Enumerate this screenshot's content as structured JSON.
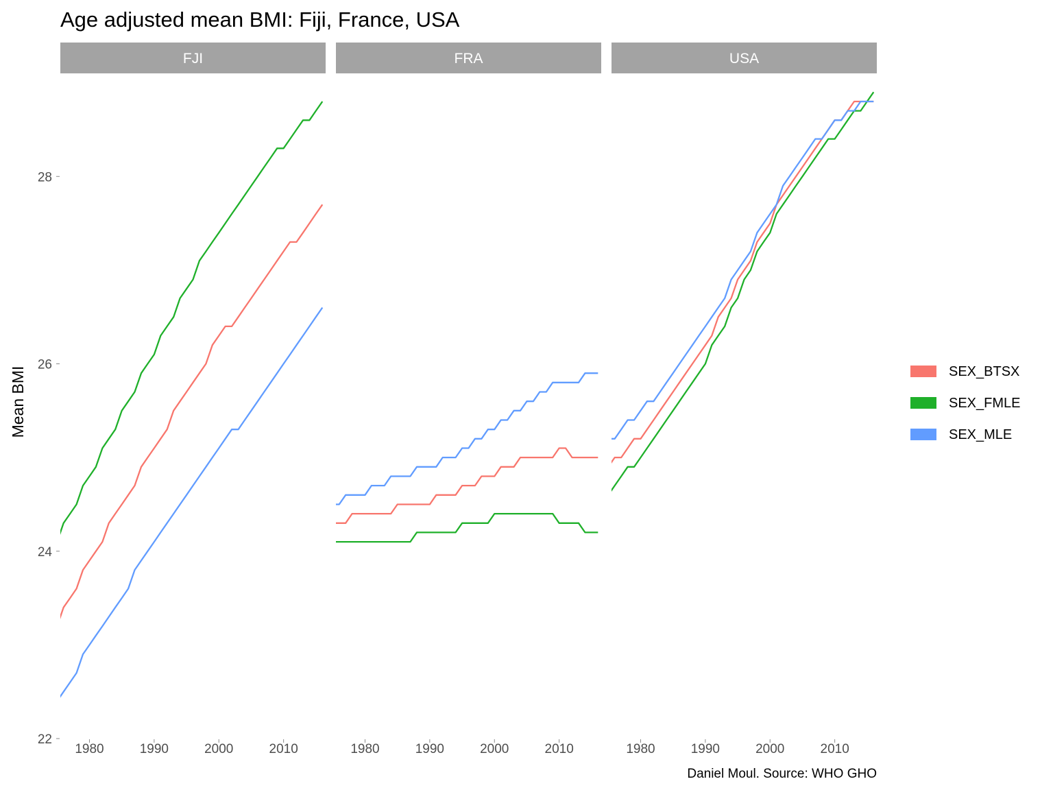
{
  "chart_data": {
    "type": "line",
    "title": "Age adjusted mean BMI: Fiji, France, USA",
    "ylabel": "Mean BMI",
    "xlabel": "",
    "caption": "Daniel Moul. Source: WHO GHO",
    "xlim": [
      1975.5,
      2016.5
    ],
    "ylim": [
      22,
      29.1
    ],
    "x_ticks": [
      1980,
      1990,
      2000,
      2010
    ],
    "y_ticks": [
      22,
      24,
      26,
      28
    ],
    "grid": false,
    "legend": {
      "position": "right",
      "entries": [
        {
          "name": "SEX_BTSX",
          "color": "#f8766d"
        },
        {
          "name": "SEX_FMLE",
          "color": "#1fb02a"
        },
        {
          "name": "SEX_MLE",
          "color": "#619cff"
        }
      ]
    },
    "x": [
      1975,
      1976,
      1977,
      1978,
      1979,
      1980,
      1981,
      1982,
      1983,
      1984,
      1985,
      1986,
      1987,
      1988,
      1989,
      1990,
      1991,
      1992,
      1993,
      1994,
      1995,
      1996,
      1997,
      1998,
      1999,
      2000,
      2001,
      2002,
      2003,
      2004,
      2005,
      2006,
      2007,
      2008,
      2009,
      2010,
      2011,
      2012,
      2013,
      2014,
      2015,
      2016
    ],
    "panels": [
      {
        "name": "FJI",
        "series": [
          {
            "name": "SEX_BTSX",
            "values": [
              23.2,
              23.4,
              23.5,
              23.6,
              23.8,
              23.9,
              24.0,
              24.1,
              24.3,
              24.4,
              24.5,
              24.6,
              24.7,
              24.9,
              25.0,
              25.1,
              25.2,
              25.3,
              25.5,
              25.6,
              25.7,
              25.8,
              25.9,
              26.0,
              26.2,
              26.3,
              26.4,
              26.4,
              26.5,
              26.6,
              26.7,
              26.8,
              26.9,
              27.0,
              27.1,
              27.2,
              27.3,
              27.3,
              27.4,
              27.5,
              27.6,
              27.7
            ]
          },
          {
            "name": "SEX_FMLE",
            "values": [
              24.1,
              24.3,
              24.4,
              24.5,
              24.7,
              24.8,
              24.9,
              25.1,
              25.2,
              25.3,
              25.5,
              25.6,
              25.7,
              25.9,
              26.0,
              26.1,
              26.3,
              26.4,
              26.5,
              26.7,
              26.8,
              26.9,
              27.1,
              27.2,
              27.3,
              27.4,
              27.5,
              27.6,
              27.7,
              27.8,
              27.9,
              28.0,
              28.1,
              28.2,
              28.3,
              28.3,
              28.4,
              28.5,
              28.6,
              28.6,
              28.7,
              28.8
            ]
          },
          {
            "name": "SEX_MLE",
            "values": [
              22.4,
              22.5,
              22.6,
              22.7,
              22.9,
              23.0,
              23.1,
              23.2,
              23.3,
              23.4,
              23.5,
              23.6,
              23.8,
              23.9,
              24.0,
              24.1,
              24.2,
              24.3,
              24.4,
              24.5,
              24.6,
              24.7,
              24.8,
              24.9,
              25.0,
              25.1,
              25.2,
              25.3,
              25.3,
              25.4,
              25.5,
              25.6,
              25.7,
              25.8,
              25.9,
              26.0,
              26.1,
              26.2,
              26.3,
              26.4,
              26.5,
              26.6
            ]
          }
        ]
      },
      {
        "name": "FRA",
        "series": [
          {
            "name": "SEX_BTSX",
            "values": [
              24.3,
              24.3,
              24.3,
              24.4,
              24.4,
              24.4,
              24.4,
              24.4,
              24.4,
              24.4,
              24.5,
              24.5,
              24.5,
              24.5,
              24.5,
              24.5,
              24.6,
              24.6,
              24.6,
              24.6,
              24.7,
              24.7,
              24.7,
              24.8,
              24.8,
              24.8,
              24.9,
              24.9,
              24.9,
              25.0,
              25.0,
              25.0,
              25.0,
              25.0,
              25.0,
              25.1,
              25.1,
              25.0,
              25.0,
              25.0,
              25.0,
              25.0
            ]
          },
          {
            "name": "SEX_FMLE",
            "values": [
              24.1,
              24.1,
              24.1,
              24.1,
              24.1,
              24.1,
              24.1,
              24.1,
              24.1,
              24.1,
              24.1,
              24.1,
              24.1,
              24.2,
              24.2,
              24.2,
              24.2,
              24.2,
              24.2,
              24.2,
              24.3,
              24.3,
              24.3,
              24.3,
              24.3,
              24.4,
              24.4,
              24.4,
              24.4,
              24.4,
              24.4,
              24.4,
              24.4,
              24.4,
              24.4,
              24.3,
              24.3,
              24.3,
              24.3,
              24.2,
              24.2,
              24.2
            ]
          },
          {
            "name": "SEX_MLE",
            "values": [
              24.5,
              24.5,
              24.6,
              24.6,
              24.6,
              24.6,
              24.7,
              24.7,
              24.7,
              24.8,
              24.8,
              24.8,
              24.8,
              24.9,
              24.9,
              24.9,
              24.9,
              25.0,
              25.0,
              25.0,
              25.1,
              25.1,
              25.2,
              25.2,
              25.3,
              25.3,
              25.4,
              25.4,
              25.5,
              25.5,
              25.6,
              25.6,
              25.7,
              25.7,
              25.8,
              25.8,
              25.8,
              25.8,
              25.8,
              25.9,
              25.9,
              25.9
            ]
          }
        ]
      },
      {
        "name": "USA",
        "series": [
          {
            "name": "SEX_BTSX",
            "values": [
              24.9,
              25.0,
              25.0,
              25.1,
              25.2,
              25.2,
              25.3,
              25.4,
              25.5,
              25.6,
              25.7,
              25.8,
              25.9,
              26.0,
              26.1,
              26.2,
              26.3,
              26.5,
              26.6,
              26.7,
              26.9,
              27.0,
              27.1,
              27.3,
              27.4,
              27.5,
              27.7,
              27.8,
              27.9,
              28.0,
              28.1,
              28.2,
              28.3,
              28.4,
              28.5,
              28.6,
              28.6,
              28.7,
              28.8,
              28.8,
              28.8,
              28.8
            ]
          },
          {
            "name": "SEX_FMLE",
            "values": [
              24.6,
              24.7,
              24.8,
              24.9,
              24.9,
              25.0,
              25.1,
              25.2,
              25.3,
              25.4,
              25.5,
              25.6,
              25.7,
              25.8,
              25.9,
              26.0,
              26.2,
              26.3,
              26.4,
              26.6,
              26.7,
              26.9,
              27.0,
              27.2,
              27.3,
              27.4,
              27.6,
              27.7,
              27.8,
              27.9,
              28.0,
              28.1,
              28.2,
              28.3,
              28.4,
              28.4,
              28.5,
              28.6,
              28.7,
              28.7,
              28.8,
              28.9
            ]
          },
          {
            "name": "SEX_MLE",
            "values": [
              25.2,
              25.2,
              25.3,
              25.4,
              25.4,
              25.5,
              25.6,
              25.6,
              25.7,
              25.8,
              25.9,
              26.0,
              26.1,
              26.2,
              26.3,
              26.4,
              26.5,
              26.6,
              26.7,
              26.9,
              27.0,
              27.1,
              27.2,
              27.4,
              27.5,
              27.6,
              27.7,
              27.9,
              28.0,
              28.1,
              28.2,
              28.3,
              28.4,
              28.4,
              28.5,
              28.6,
              28.6,
              28.7,
              28.7,
              28.8,
              28.8,
              28.8
            ]
          }
        ]
      }
    ]
  }
}
